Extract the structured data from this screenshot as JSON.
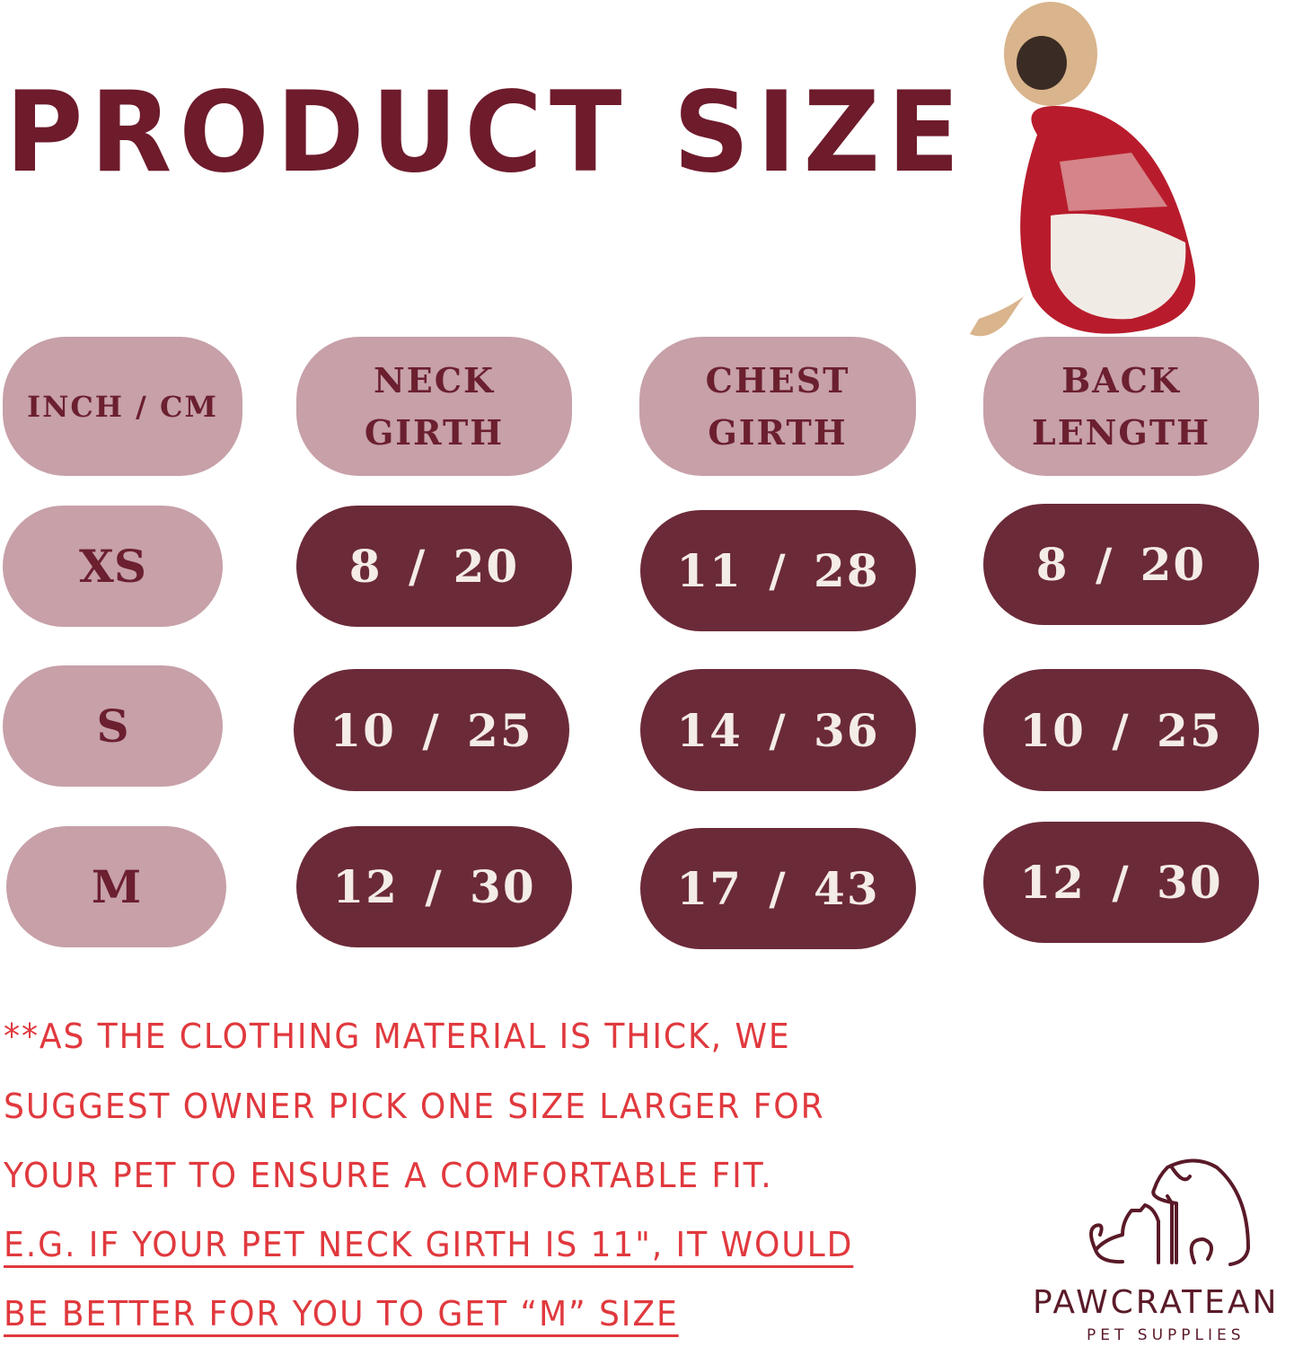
{
  "title": "PRODUCT SIZE",
  "table": {
    "headers": [
      "INCH / CM",
      "NECK GIRTH",
      "CHEST GIRTH",
      "BACK LENGTH"
    ],
    "rows": [
      {
        "size": "XS",
        "neck": "8 / 20",
        "chest": "11 / 28",
        "back": "8 / 20"
      },
      {
        "size": "S",
        "neck": "10 / 25",
        "chest": "14 / 36",
        "back": "10 / 25"
      },
      {
        "size": "M",
        "neck": "12 / 30",
        "chest": "17 / 43",
        "back": "12 / 30"
      }
    ]
  },
  "note": {
    "lines": [
      "**AS THE CLOTHING MATERIAL IS THICK, WE",
      "SUGGEST OWNER PICK ONE SIZE LARGER FOR",
      "YOUR PET TO ENSURE A COMFORTABLE FIT."
    ],
    "underlined_lines": [
      "E.G. IF YOUR PET NECK GIRTH IS 11\", IT WOULD",
      "BE BETTER FOR YOU TO GET  “M” SIZE"
    ]
  },
  "brand": {
    "name": "PAWCRATEAN",
    "tagline": "PET SUPPLIES"
  },
  "colors": {
    "title": "#6e1b2c",
    "header_pill": "#c7a0a8",
    "value_pill": "#6b2a38",
    "note_text": "#e0393e"
  },
  "image": "pug-in-red-snowflake-sweater"
}
